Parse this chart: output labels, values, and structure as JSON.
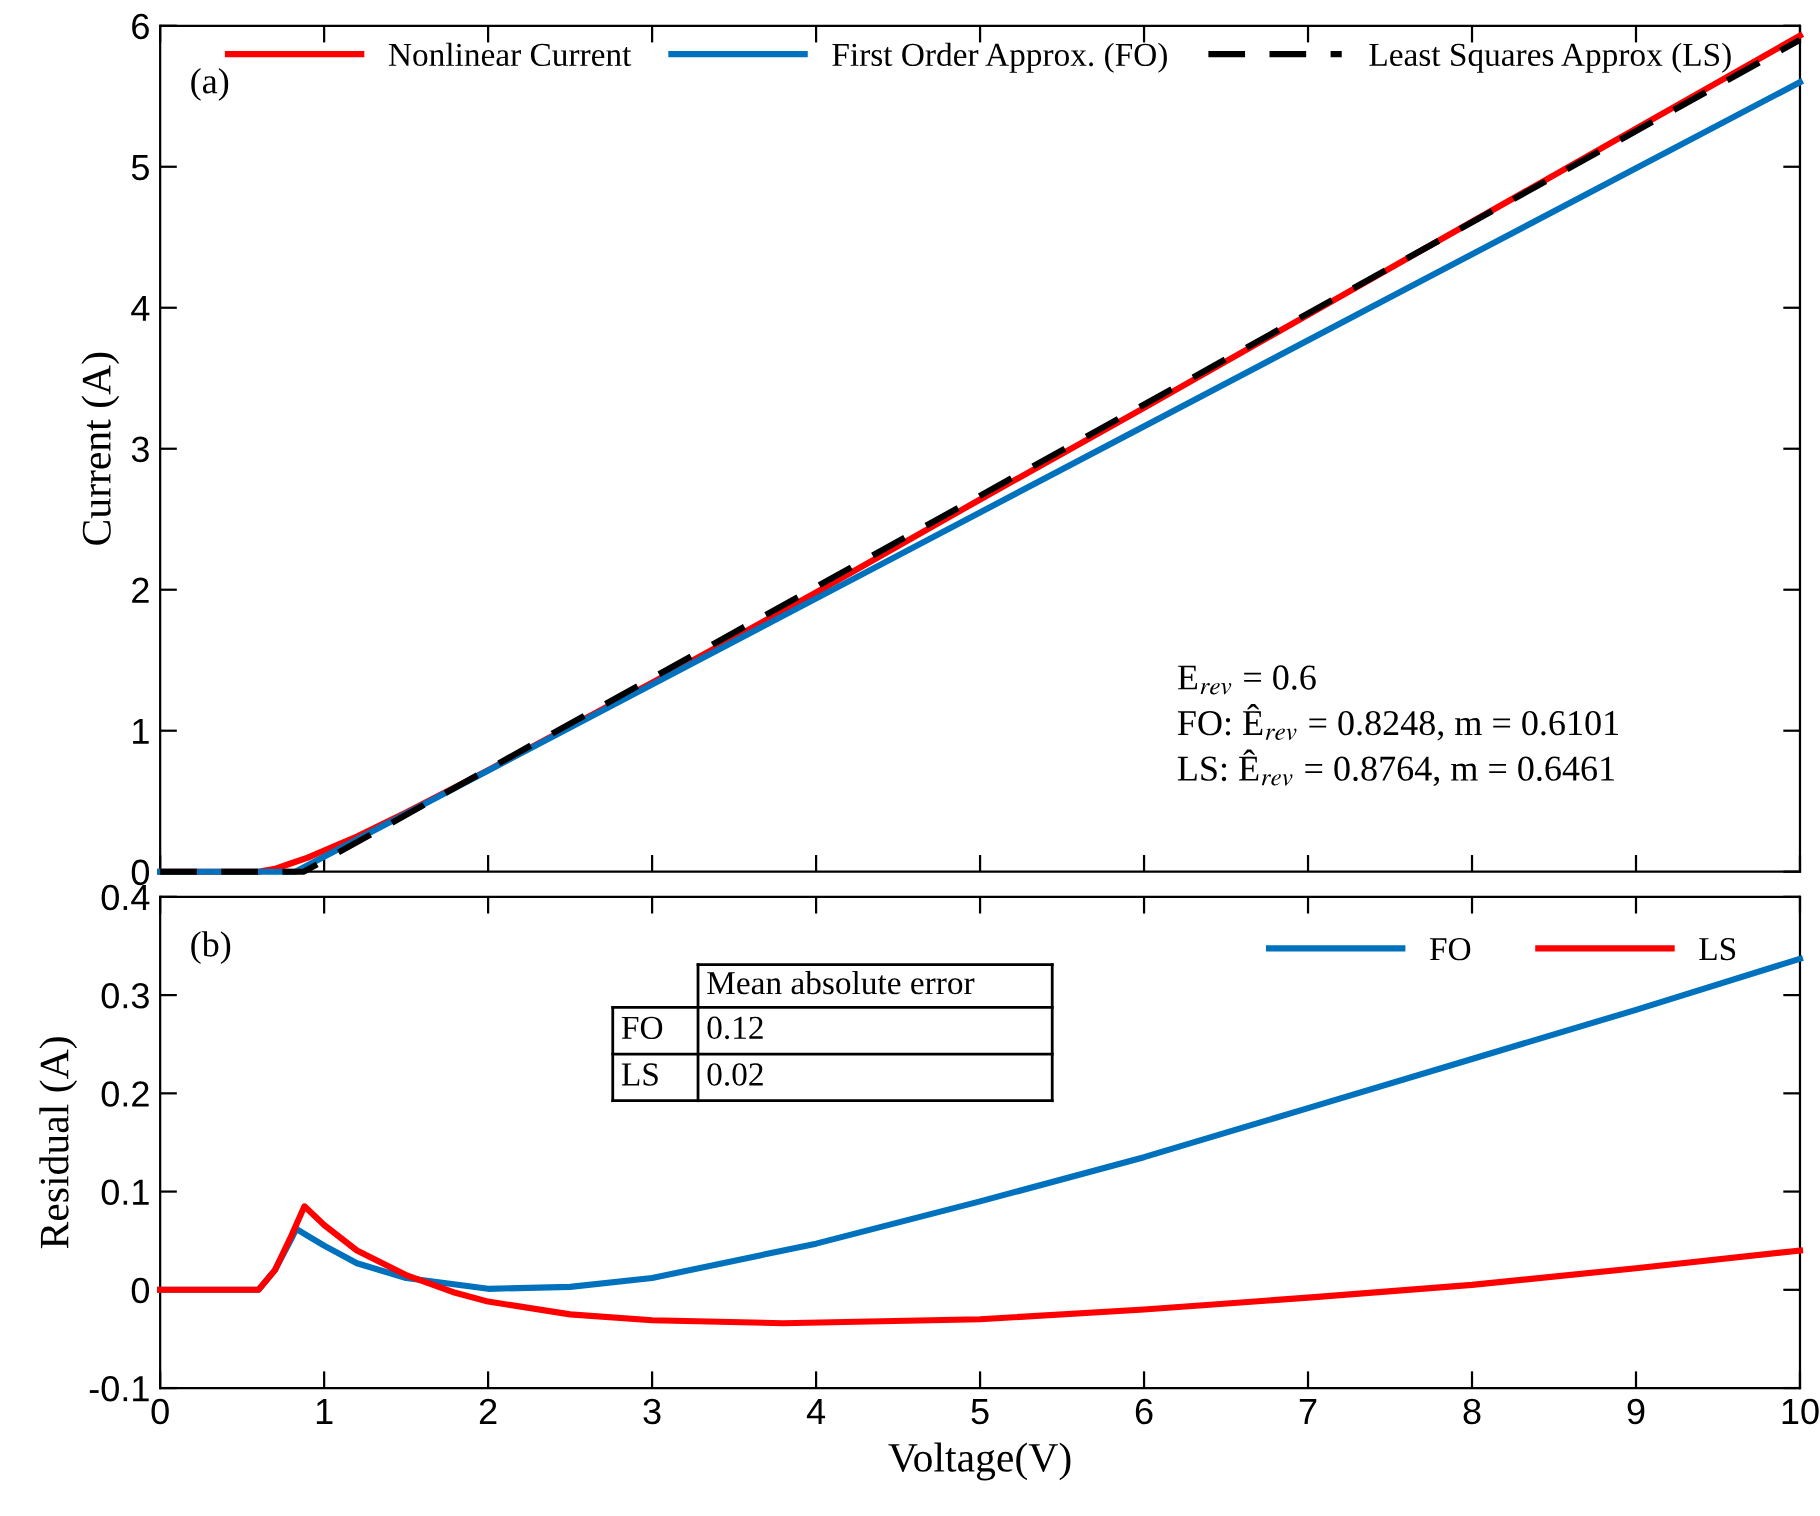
{
  "chart_data": [
    {
      "type": "line",
      "ylabel": "Current (A)",
      "xlim": [
        0,
        10
      ],
      "xticks": [
        0,
        1,
        2,
        3,
        4,
        5,
        6,
        7,
        8,
        9,
        10
      ],
      "ylim": [
        0,
        6
      ],
      "yticks": [
        0,
        1,
        2,
        3,
        4,
        5,
        6
      ],
      "tick_labels": "y",
      "grid": false,
      "legend": "top",
      "marker": "none",
      "annotations": [
        "(a)",
        "E$_{rev}$ = 0.6",
        "FO: Ê$_{rev}$ = 0.8248, m = 0.6101",
        "LS: Ê$_{rev}$ = 0.8764, m = 0.6461"
      ],
      "series": [
        {
          "name": "Nonlinear Current",
          "color": "#ff0000",
          "line_style": "solid",
          "x": [
            0,
            0.6,
            0.7,
            0.8,
            0.9,
            1.0,
            1.2,
            1.5,
            2,
            3,
            4,
            5,
            6,
            7,
            8,
            9,
            10
          ],
          "values": [
            0,
            0,
            0.02,
            0.06,
            0.1,
            0.15,
            0.25,
            0.42,
            0.72,
            1.34,
            1.98,
            2.64,
            3.29,
            3.95,
            4.61,
            5.27,
            5.93
          ]
        },
        {
          "name": "First Order Approx. (FO)",
          "color": "#0072bd",
          "line_style": "solid",
          "x": [
            0,
            0.8248,
            10
          ],
          "values": [
            0,
            0,
            5.6
          ]
        },
        {
          "name": "Least Squares Approx (LS)",
          "color": "#000000",
          "line_style": "dashed",
          "x": [
            0,
            0.8764,
            10
          ],
          "values": [
            0,
            0,
            5.9
          ]
        }
      ]
    },
    {
      "type": "line",
      "xlabel": "Voltage(V)",
      "ylabel": "Residual (A)",
      "xlim": [
        0,
        10
      ],
      "xticks": [
        0,
        1,
        2,
        3,
        4,
        5,
        6,
        7,
        8,
        9,
        10
      ],
      "ylim": [
        -0.1,
        0.4
      ],
      "yticks": [
        -0.1,
        0,
        0.1,
        0.2,
        0.3,
        0.4
      ],
      "grid": false,
      "legend": "top right",
      "marker": "none",
      "annotations": [
        "(b)",
        "Mean absolute error",
        "FO",
        "0.12",
        "LS",
        "0.02"
      ],
      "series": [
        {
          "name": "FO",
          "color": "#0072bd",
          "line_style": "solid",
          "x": [
            0,
            0.6,
            0.7,
            0.8,
            0.83,
            0.9,
            1.0,
            1.2,
            1.5,
            2,
            2.5,
            3,
            4,
            5,
            6,
            7,
            8,
            9,
            10
          ],
          "values": [
            0,
            0,
            0.02,
            0.052,
            0.062,
            0.055,
            0.045,
            0.027,
            0.012,
            0.001,
            0.003,
            0.012,
            0.047,
            0.09,
            0.135,
            0.185,
            0.235,
            0.285,
            0.337
          ]
        },
        {
          "name": "LS",
          "color": "#ff0000",
          "line_style": "solid",
          "x": [
            0,
            0.6,
            0.7,
            0.8,
            0.88,
            1.0,
            1.2,
            1.5,
            1.8,
            2,
            2.5,
            3,
            3.8,
            5,
            6,
            7,
            8,
            9,
            10
          ],
          "values": [
            0,
            0,
            0.02,
            0.055,
            0.085,
            0.066,
            0.04,
            0.015,
            -0.003,
            -0.012,
            -0.025,
            -0.031,
            -0.034,
            -0.03,
            -0.02,
            -0.008,
            0.005,
            0.022,
            0.04
          ]
        }
      ]
    }
  ]
}
